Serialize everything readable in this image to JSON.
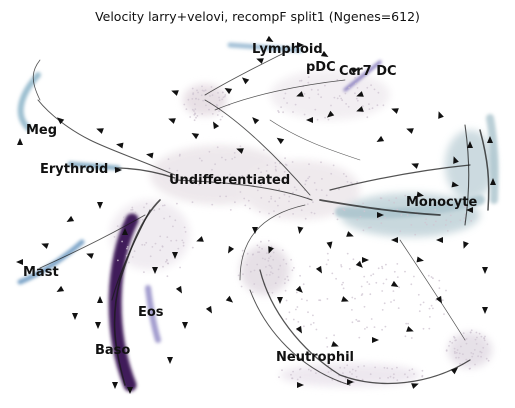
{
  "chart_data": {
    "type": "scatter",
    "title": "Velocity larry+velovi, recompF split1 (Ngenes=612)",
    "xlabel": "",
    "ylabel": "",
    "axes_visible": false,
    "grid": false,
    "legend": "none",
    "overlay": "velocity stream arrows",
    "clusters": [
      {
        "name": "Lymphoid",
        "color": "#7ea6c6"
      },
      {
        "name": "pDC",
        "color": "#c9b4d6"
      },
      {
        "name": "Ccr7 DC",
        "color": "#7b6fb8"
      },
      {
        "name": "Meg",
        "color": "#9dbfd0"
      },
      {
        "name": "Erythroid",
        "color": "#8fb3c9"
      },
      {
        "name": "Undifferentiated",
        "color": "#ddd0d8"
      },
      {
        "name": "Monocyte",
        "color": "#a9c3cc"
      },
      {
        "name": "Mast",
        "color": "#7fa6c9"
      },
      {
        "name": "Eos",
        "color": "#8c84c2"
      },
      {
        "name": "Baso",
        "color": "#3f1a5a"
      },
      {
        "name": "Neutrophil",
        "color": "#d9d4df"
      }
    ]
  }
}
